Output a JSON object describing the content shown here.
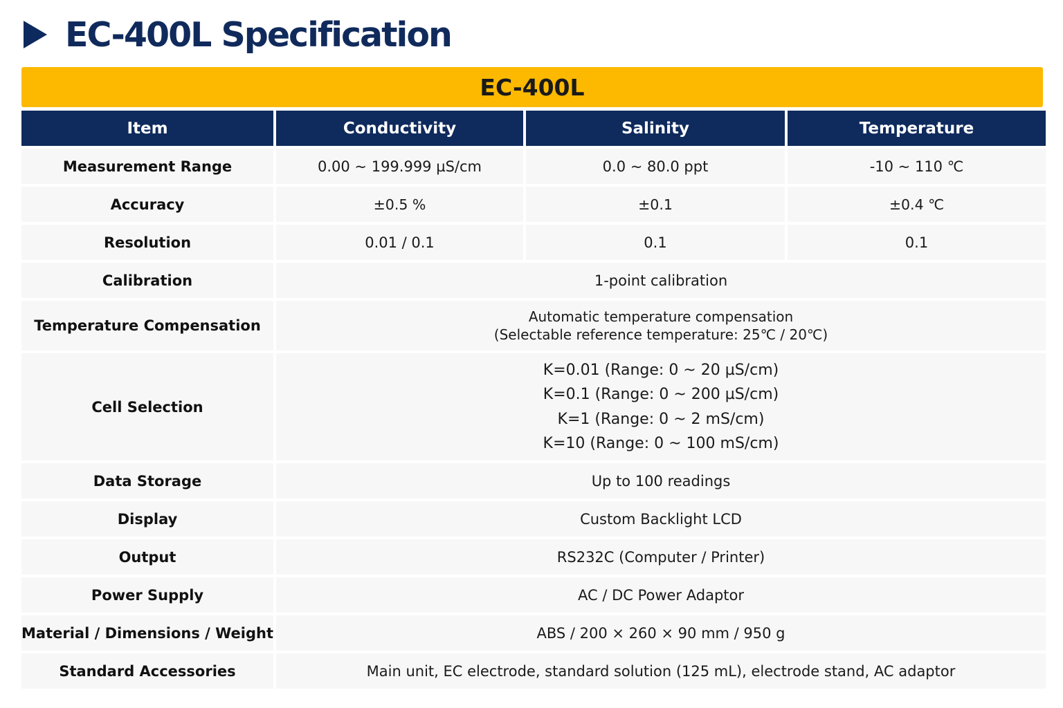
{
  "page": {
    "title": "EC-400L Specification",
    "model": "EC-400L"
  },
  "colors": {
    "accent": "#fdb900",
    "header_bg": "#0f2a5c",
    "title": "#102a5c",
    "cell_bg": "#f7f7f7"
  },
  "icons": {
    "title_marker": "play-triangle-icon"
  },
  "table": {
    "headers": [
      "Item",
      "Conductivity",
      "Salinity",
      "Temperature"
    ],
    "rows": [
      {
        "label": "Measurement Range",
        "conductivity": "0.00 ~ 199.999 µS/cm",
        "salinity": "0.0 ~ 80.0 ppt",
        "temperature": "-10 ~ 110 ℃"
      },
      {
        "label": "Accuracy",
        "conductivity": "±0.5 %",
        "salinity": "±0.1",
        "temperature": "±0.4 ℃"
      },
      {
        "label": "Resolution",
        "conductivity": "0.01 / 0.1",
        "salinity": "0.1",
        "temperature": "0.1"
      },
      {
        "label": "Calibration",
        "value": "1-point calibration"
      },
      {
        "label": "Temperature Compensation",
        "lines": [
          "Automatic temperature compensation",
          "(Selectable reference temperature: 25℃ / 20℃)"
        ]
      },
      {
        "label": "Cell Selection",
        "lines": [
          "K=0.01 (Range: 0 ~ 20 µS/cm)",
          "K=0.1 (Range: 0 ~ 200 µS/cm)",
          "K=1  (Range: 0 ~ 2 mS/cm)",
          "K=10  (Range: 0 ~ 100 mS/cm)"
        ]
      },
      {
        "label": "Data Storage",
        "value": "Up to 100 readings"
      },
      {
        "label": "Display",
        "value": "Custom Backlight LCD"
      },
      {
        "label": "Output",
        "value": "RS232C (Computer / Printer)"
      },
      {
        "label": "Power Supply",
        "value": "AC / DC Power Adaptor"
      },
      {
        "label": "Material / Dimensions / Weight",
        "value": "ABS / 200 × 260 × 90 mm / 950 g"
      },
      {
        "label": "Standard Accessories",
        "value": "Main unit, EC electrode, standard solution (125 mL), electrode stand, AC adaptor"
      }
    ]
  }
}
